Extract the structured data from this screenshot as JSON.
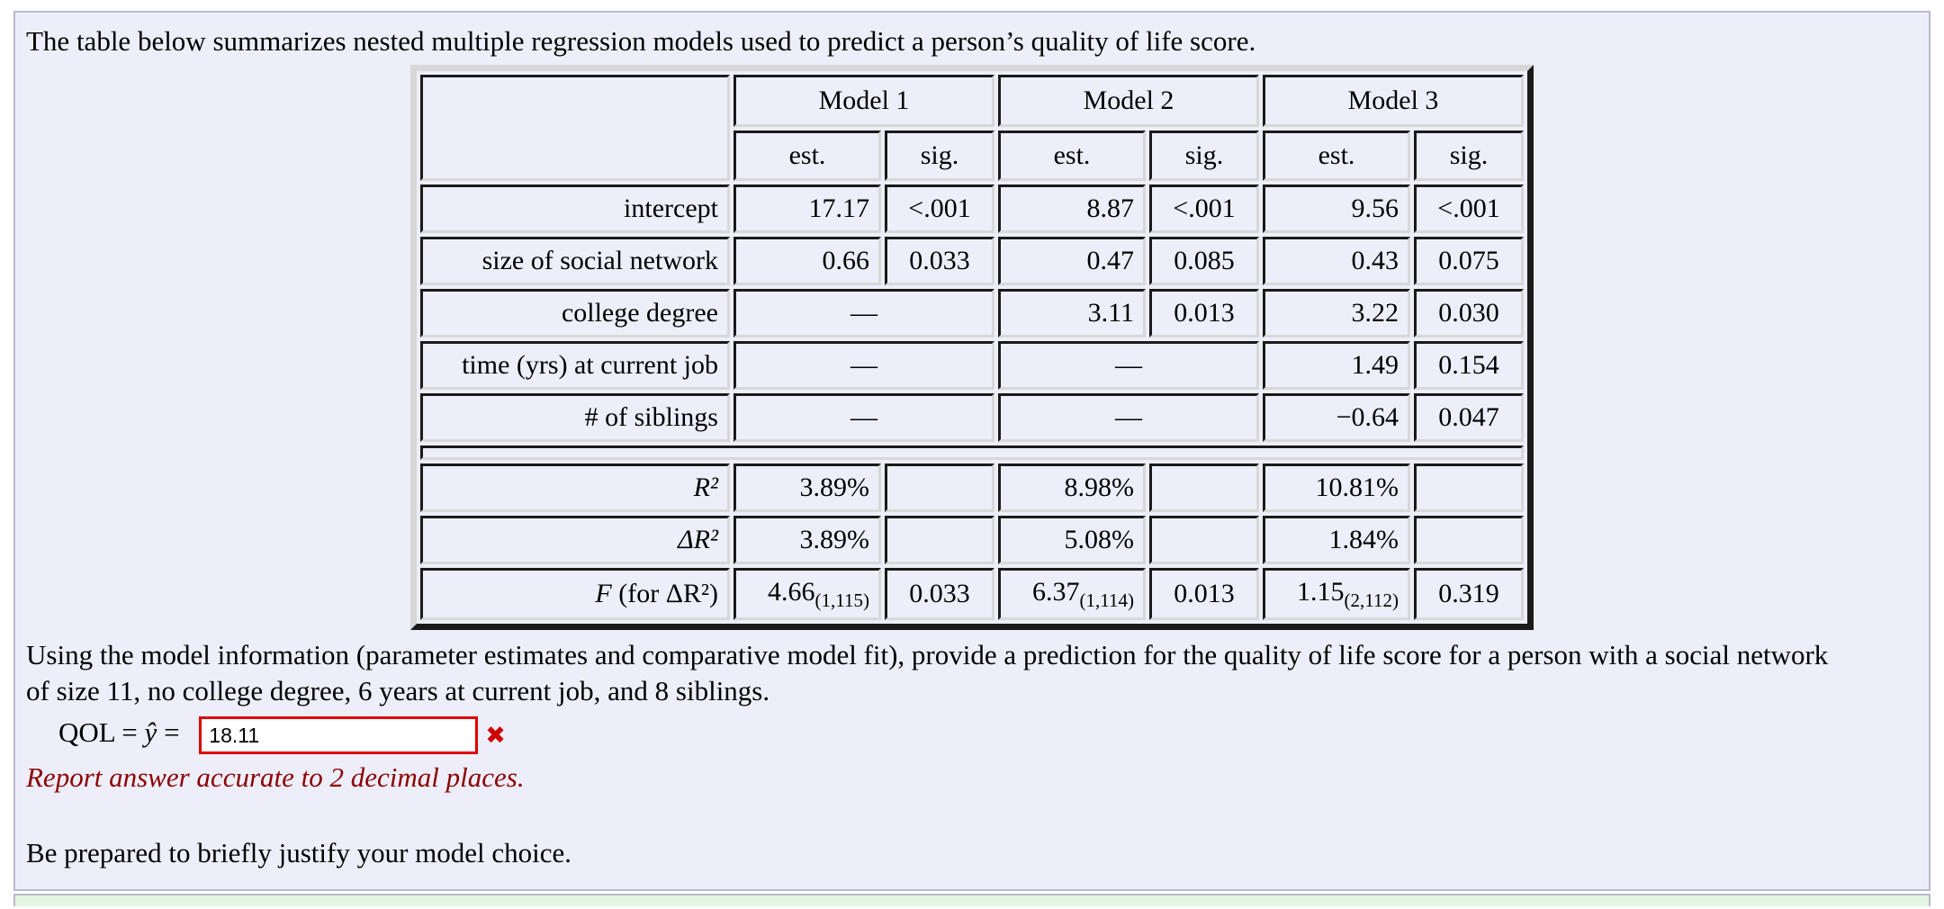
{
  "intro": "The table below summarizes nested multiple regression models used to predict a person’s quality of life score.",
  "table": {
    "models": [
      "Model 1",
      "Model 2",
      "Model 3"
    ],
    "est_label": "est.",
    "sig_label": "sig.",
    "rows": {
      "intercept": {
        "label": "intercept",
        "m1e": "17.17",
        "m1s": "<.001",
        "m2e": "8.87",
        "m2s": "<.001",
        "m3e": "9.56",
        "m3s": "<.001"
      },
      "network": {
        "label": "size of social network",
        "m1e": "0.66",
        "m1s": "0.033",
        "m2e": "0.47",
        "m2s": "0.085",
        "m3e": "0.43",
        "m3s": "0.075"
      },
      "college": {
        "label": "college degree",
        "m1": "—",
        "m2e": "3.11",
        "m2s": "0.013",
        "m3e": "3.22",
        "m3s": "0.030"
      },
      "job": {
        "label": "time (yrs) at current job",
        "m1": "—",
        "m2": "—",
        "m3e": "1.49",
        "m3s": "0.154"
      },
      "siblings": {
        "label": "# of siblings",
        "m1": "—",
        "m2": "—",
        "m3e": "−0.64",
        "m3s": "0.047"
      },
      "r2": {
        "label": "R²",
        "m1e": "3.89%",
        "m2e": "8.98%",
        "m3e": "10.81%"
      },
      "dr2": {
        "label": "ΔR²",
        "m1e": "3.89%",
        "m2e": "5.08%",
        "m3e": "1.84%"
      },
      "f": {
        "label_sym": "F",
        "label_rest": " (for ΔR²)",
        "m1e": "4.66",
        "m1sub": "(1,115)",
        "m1s": "0.033",
        "m2e": "6.37",
        "m2sub": "(1,114)",
        "m2s": "0.013",
        "m3e": "1.15",
        "m3sub": "(2,112)",
        "m3s": "0.319"
      }
    }
  },
  "question": {
    "line1": "Using the model information (parameter estimates and comparative model fit), provide a prediction for the quality of life score for a person with a social network",
    "line2": "of size 11, no college degree, 6 years at current job, and 8 siblings."
  },
  "answer": {
    "qol": "QOL = ",
    "yhat": "ŷ",
    "equals": " = ",
    "value": "18.11",
    "wrong_mark": "✖",
    "hint": "Report answer accurate to 2 decimal places."
  },
  "footer": "Be prepared to briefly justify your model choice.",
  "colors": {
    "panel_bg": "#eeeefa",
    "panel_border": "#b9b9d2",
    "input_border": "#dd0000",
    "wrong_mark_red": "#cc0000",
    "hint_red": "#8b0000",
    "next_section_green": "#e3f6e3"
  }
}
